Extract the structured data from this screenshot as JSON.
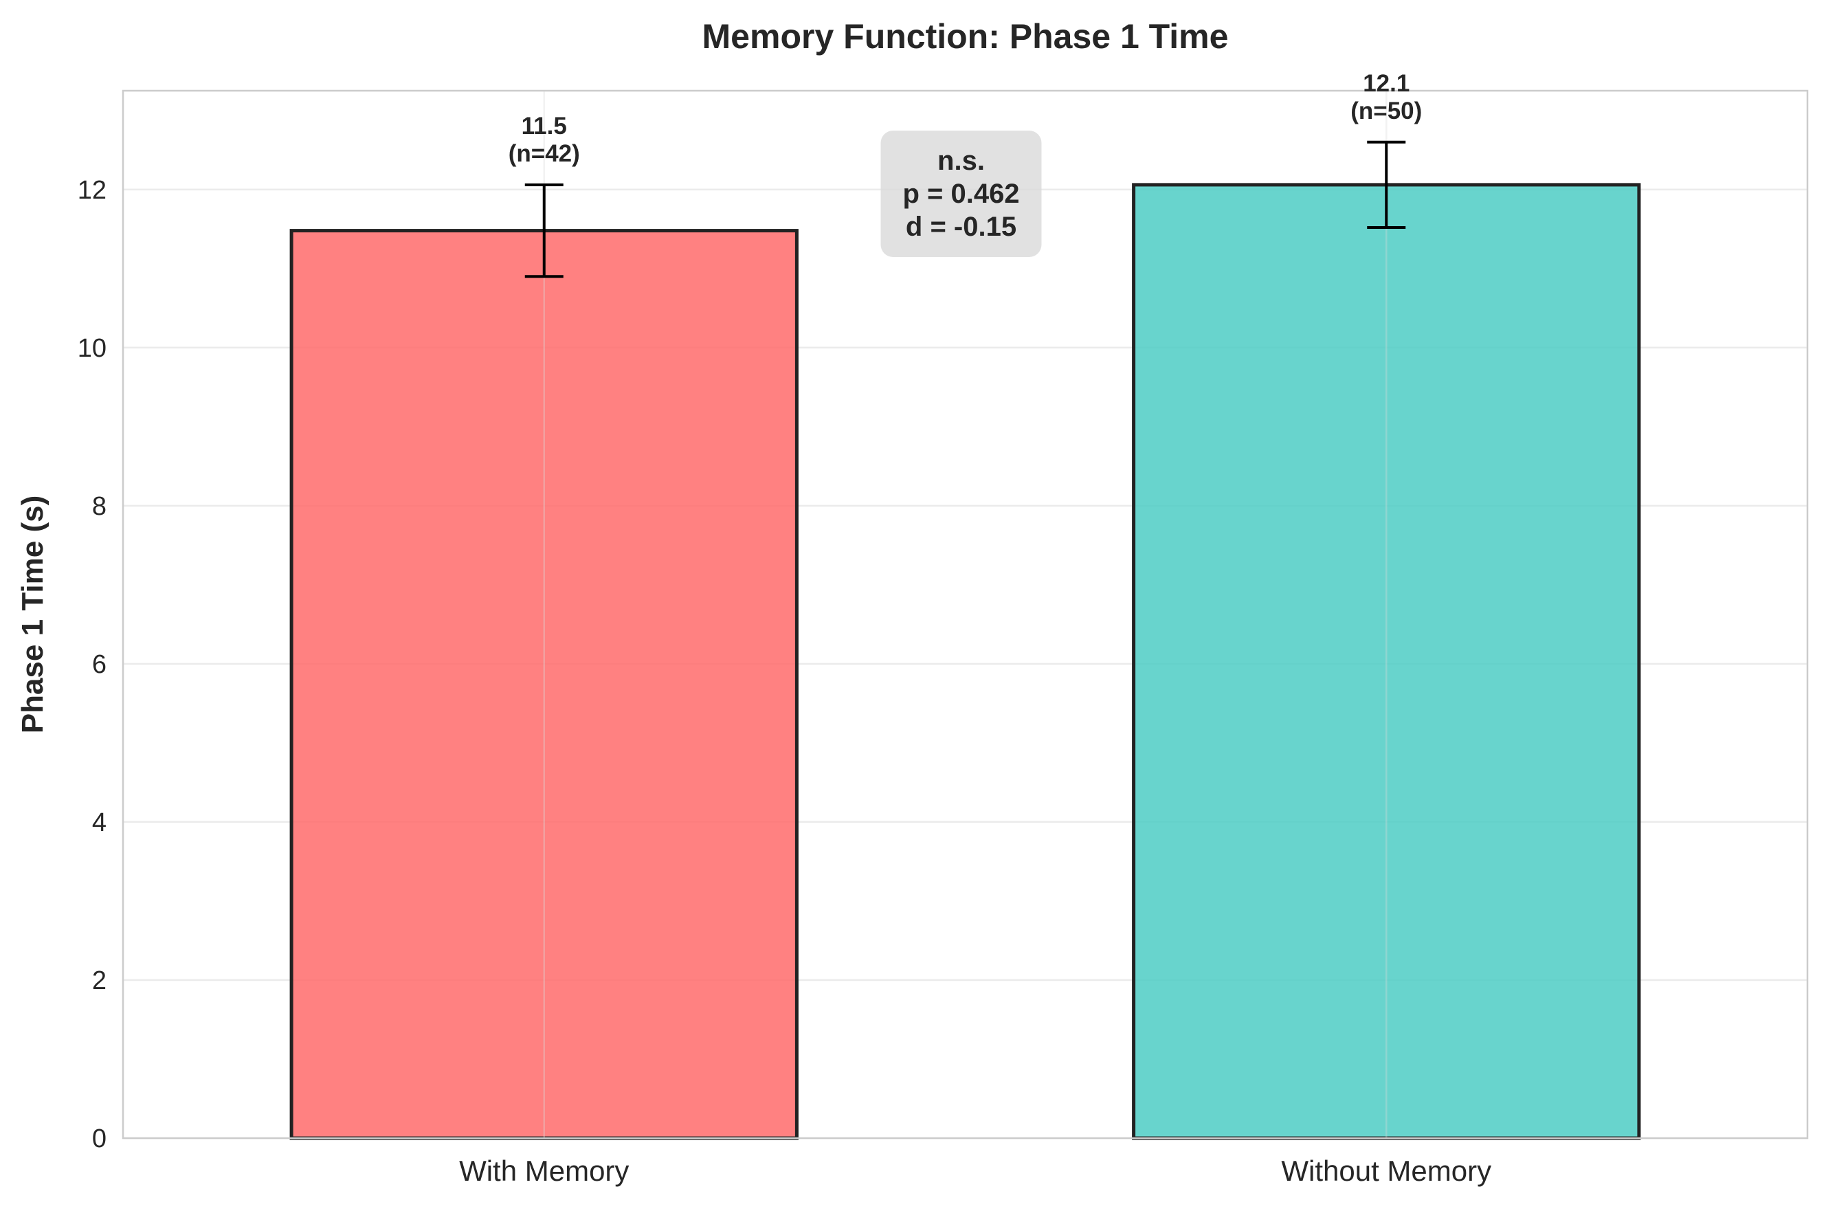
{
  "chart_data": {
    "type": "bar",
    "title": "Memory Function: Phase 1 Time",
    "xlabel": "",
    "ylabel": "Phase 1 Time (s)",
    "ylim": [
      0,
      13.25
    ],
    "yticks": [
      0,
      2,
      4,
      6,
      8,
      10,
      12
    ],
    "grid": true,
    "categories": [
      "With Memory",
      "Without Memory"
    ],
    "values": [
      11.48,
      12.06
    ],
    "errors": [
      0.58,
      0.54
    ],
    "colors": [
      "#ff6b6b",
      "#4ecdc4"
    ],
    "data_labels": [
      {
        "value": "11.5",
        "n": "(n=42)"
      },
      {
        "value": "12.1",
        "n": "(n=50)"
      }
    ],
    "annotation": {
      "lines": [
        "n.s.",
        "p = 0.462",
        "d = -0.15"
      ]
    }
  }
}
